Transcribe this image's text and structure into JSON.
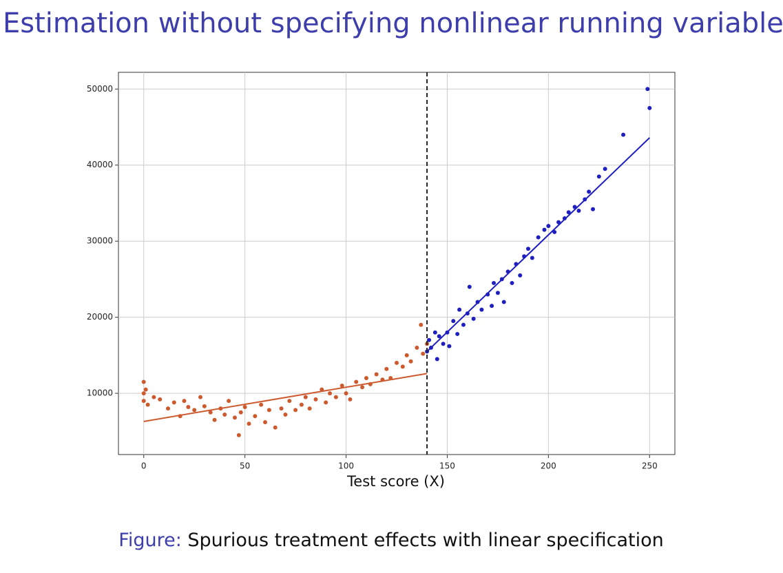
{
  "slide_title": "Estimation without specifying nonlinear running variable",
  "caption": {
    "prefix": "Figure:",
    "text": "Spurious treatment effects with linear specification"
  },
  "chart_data": {
    "type": "scatter",
    "x_label": "Test score (X)",
    "xlim": [
      -12.5,
      262.5
    ],
    "xticks": [
      0,
      50,
      100,
      150,
      200,
      250
    ],
    "ylim": [
      1950,
      52200
    ],
    "yticks": [
      10000,
      20000,
      30000,
      40000,
      50000
    ],
    "grid": true,
    "cutoff": 140,
    "series": [
      {
        "color": "#cc5a2e",
        "x": [
          0,
          0,
          0,
          1,
          2,
          5,
          8,
          12,
          15,
          18,
          20,
          22,
          25,
          28,
          30,
          33,
          35,
          38,
          40,
          42,
          45,
          47,
          48,
          50,
          52,
          55,
          58,
          60,
          62,
          65,
          68,
          70,
          72,
          75,
          78,
          80,
          82,
          85,
          88,
          90,
          92,
          95,
          98,
          100,
          102,
          105,
          108,
          110,
          112,
          115,
          118,
          120,
          122,
          125,
          128,
          130,
          132,
          135,
          137,
          138,
          140
        ],
        "y": [
          10000,
          11500,
          9000,
          10500,
          8500,
          9500,
          9200,
          8000,
          8800,
          7000,
          9000,
          8200,
          7800,
          9500,
          8300,
          7500,
          6500,
          8000,
          7200,
          9000,
          6800,
          4500,
          7500,
          8200,
          6000,
          7000,
          8500,
          6200,
          7800,
          5500,
          8000,
          7200,
          9000,
          7800,
          8500,
          9500,
          8000,
          9200,
          10500,
          8800,
          10000,
          9500,
          11000,
          10000,
          9200,
          11500,
          10800,
          12000,
          11200,
          12500,
          11800,
          13200,
          12000,
          14000,
          13500,
          15000,
          14200,
          16000,
          19000,
          15200,
          16500
        ]
      },
      {
        "color": "#1f1fbf",
        "x": [
          140,
          141,
          142,
          144,
          145,
          146,
          148,
          150,
          151,
          153,
          155,
          156,
          158,
          160,
          161,
          163,
          165,
          167,
          170,
          172,
          173,
          175,
          177,
          178,
          180,
          182,
          184,
          186,
          188,
          190,
          192,
          195,
          198,
          200,
          203,
          205,
          208,
          210,
          213,
          215,
          218,
          220,
          222,
          225,
          228,
          237,
          249,
          250
        ],
        "y": [
          15500,
          17000,
          16000,
          18000,
          14500,
          17500,
          16500,
          18000,
          16200,
          19500,
          17800,
          21000,
          19000,
          20500,
          24000,
          19800,
          22000,
          21000,
          23000,
          21500,
          24500,
          23200,
          25000,
          22000,
          26000,
          24500,
          27000,
          25500,
          28000,
          29000,
          27800,
          30500,
          31500,
          32000,
          31200,
          32500,
          33000,
          33800,
          34500,
          34000,
          35500,
          36500,
          34200,
          38500,
          39500,
          44000,
          50000,
          47500
        ]
      }
    ],
    "lines": [
      {
        "color": "#cc5a2e",
        "x": [
          0,
          140
        ],
        "y": [
          6300,
          12600
        ]
      },
      {
        "color": "#1f1fbf",
        "x": [
          140,
          250
        ],
        "y": [
          15500,
          43600
        ]
      }
    ]
  }
}
